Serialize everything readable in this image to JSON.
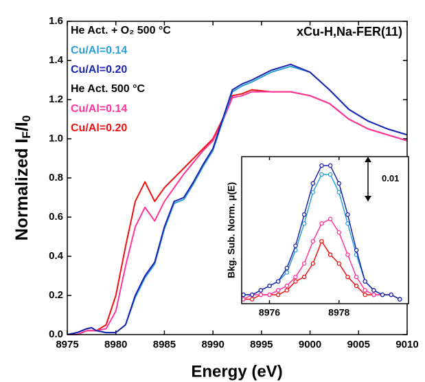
{
  "chart_data": [
    {
      "type": "line",
      "annotation": "xCu-H,Na-FER(11)",
      "groups": [
        {
          "label": "He Act. + O₂ 500 °C",
          "series": [
            0,
            1
          ]
        },
        {
          "label": "He Act. 500 °C",
          "series": [
            2,
            3
          ]
        }
      ],
      "x_label": "Energy (eV)",
      "y_label": [
        "Normalized I",
        "F",
        "/I",
        "0"
      ],
      "x": [
        8975,
        8976,
        8977,
        8977.5,
        8978,
        8979,
        8980,
        8981,
        8982,
        8983,
        8984,
        8985,
        8986,
        8987,
        8988,
        8989,
        8990,
        8991,
        8992,
        8993,
        8994,
        8996,
        8998,
        9000,
        9002,
        9004,
        9006,
        9008,
        9010
      ],
      "series": [
        {
          "name": "Cu/Al=0.14",
          "color": "#2a9fd6",
          "values": [
            0.0,
            0.01,
            0.03,
            0.035,
            0.02,
            0.01,
            0.01,
            0.05,
            0.19,
            0.29,
            0.36,
            0.54,
            0.67,
            0.69,
            0.77,
            0.86,
            0.94,
            1.09,
            1.24,
            1.27,
            1.29,
            1.34,
            1.37,
            1.34,
            1.25,
            1.15,
            1.09,
            1.05,
            1.02
          ]
        },
        {
          "name": "Cu/Al=0.20",
          "color": "#1a22b0",
          "values": [
            0.0,
            0.01,
            0.03,
            0.035,
            0.02,
            0.01,
            0.01,
            0.05,
            0.2,
            0.3,
            0.37,
            0.55,
            0.68,
            0.7,
            0.78,
            0.87,
            0.95,
            1.1,
            1.25,
            1.28,
            1.3,
            1.35,
            1.38,
            1.34,
            1.25,
            1.15,
            1.09,
            1.05,
            1.02
          ]
        },
        {
          "name": "Cu/Al=0.14",
          "color": "#ff3399",
          "values": [
            0.0,
            0.0,
            0.02,
            0.02,
            0.02,
            0.03,
            0.12,
            0.35,
            0.55,
            0.65,
            0.58,
            0.68,
            0.75,
            0.82,
            0.88,
            0.94,
            0.99,
            1.09,
            1.21,
            1.22,
            1.24,
            1.24,
            1.24,
            1.22,
            1.18,
            1.1,
            1.05,
            1.02,
            0.99
          ]
        },
        {
          "name": "Cu/Al=0.20",
          "color": "#ee1111",
          "values": [
            0.0,
            0.0,
            0.02,
            0.02,
            0.02,
            0.05,
            0.2,
            0.45,
            0.68,
            0.78,
            0.68,
            0.75,
            0.8,
            0.85,
            0.9,
            0.95,
            1.0,
            1.1,
            1.22,
            1.23,
            1.25,
            1.24,
            1.24,
            1.22,
            1.18,
            1.1,
            1.05,
            1.02,
            0.99
          ]
        }
      ],
      "xlim": [
        8975,
        9010
      ],
      "xticks": [
        8975,
        8980,
        8985,
        8990,
        8995,
        9000,
        9005,
        9010
      ],
      "ylim": [
        0,
        1.6
      ],
      "yticks": [
        {
          "value": 0,
          "label": "0.0"
        },
        0.2,
        0.4,
        0.6,
        0.8,
        {
          "value": 1,
          "label": "1.0"
        },
        1.2,
        1.4,
        1.6
      ]
    },
    {
      "type": "line",
      "markers": true,
      "y_label": "Bkg. Sub. Norm. μ(E)",
      "scale_bar": 0.01,
      "x": [
        8975.25,
        8975.5,
        8975.75,
        8976,
        8976.25,
        8976.5,
        8976.75,
        8977,
        8977.25,
        8977.5,
        8977.75,
        8978,
        8978.25,
        8978.5,
        8978.75,
        8979,
        8979.25,
        8979.5,
        8979.75
      ],
      "series": [
        {
          "color": "#2a9fd6",
          "values": [
            0.001,
            0.001,
            0.002,
            0.003,
            0.004,
            0.006,
            0.011,
            0.017,
            0.024,
            0.028,
            0.028,
            0.024,
            0.017,
            0.01,
            0.004,
            0.002,
            0.001,
            0.001,
            0.0
          ]
        },
        {
          "color": "#1a22b0",
          "values": [
            0.001,
            0.001,
            0.002,
            0.003,
            0.004,
            0.007,
            0.012,
            0.019,
            0.026,
            0.03,
            0.03,
            0.026,
            0.019,
            0.011,
            0.004,
            0.002,
            0.001,
            0.001,
            0.0
          ]
        },
        {
          "color": "#ff3399",
          "values": [
            0.0,
            0.001,
            0.001,
            0.001,
            0.002,
            0.003,
            0.005,
            0.008,
            0.013,
            0.017,
            0.018,
            0.015,
            0.01,
            0.005,
            0.002,
            0.001,
            0.001,
            0.001,
            0.0
          ]
        },
        {
          "color": "#ee1111",
          "values": [
            0.0,
            0.0,
            0.001,
            0.001,
            0.001,
            0.002,
            0.004,
            0.005,
            0.008,
            0.013,
            0.01,
            0.008,
            0.005,
            0.003,
            0.001,
            0.001,
            0.001,
            0.001,
            0.0
          ]
        }
      ],
      "xlim": [
        8975.2,
        8980
      ],
      "xticks": [
        8976,
        8978
      ],
      "ylim": [
        -0.001,
        0.032
      ]
    }
  ]
}
